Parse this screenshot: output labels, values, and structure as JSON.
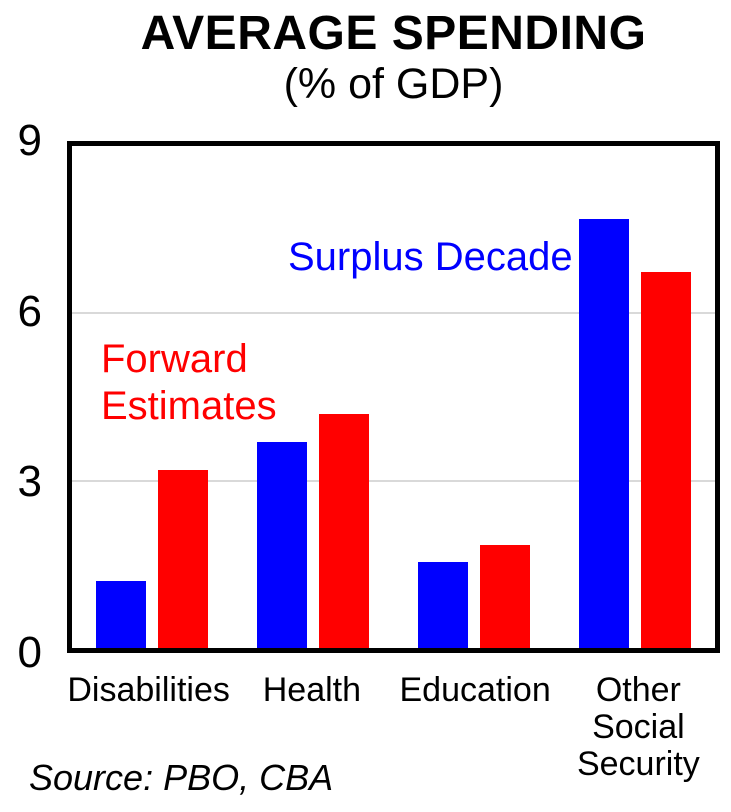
{
  "title": "AVERAGE SPENDING",
  "subtitle": "(% of GDP)",
  "annotations": {
    "surplus_decade": "Surplus Decade",
    "forward_estimates": "Forward\nEstimates"
  },
  "source_note": "Source: PBO, CBA",
  "colors": {
    "surplus_decade_blue": "#0000ff",
    "forward_estimates_red": "#ff0000",
    "gridline_gray": "#d9d9d9",
    "axis_black": "#000000"
  },
  "chart_data": {
    "type": "bar",
    "title": "AVERAGE SPENDING",
    "subtitle": "(% of GDP)",
    "categories": [
      "Disabilities",
      "Health",
      "Education",
      "Other Social Security"
    ],
    "series": [
      {
        "name": "Surplus Decade",
        "color": "#0000ff",
        "values": [
          1.2,
          3.7,
          1.55,
          7.7
        ]
      },
      {
        "name": "Forward Estimates",
        "color": "#ff0000",
        "values": [
          3.2,
          4.2,
          1.85,
          6.75
        ]
      }
    ],
    "ylabel": "",
    "ylim": [
      0,
      9
    ],
    "yticks": [
      0,
      3,
      6,
      9
    ],
    "grid": true,
    "gridline_values": [
      3,
      6
    ],
    "legend": "in-plot colored text annotations"
  }
}
